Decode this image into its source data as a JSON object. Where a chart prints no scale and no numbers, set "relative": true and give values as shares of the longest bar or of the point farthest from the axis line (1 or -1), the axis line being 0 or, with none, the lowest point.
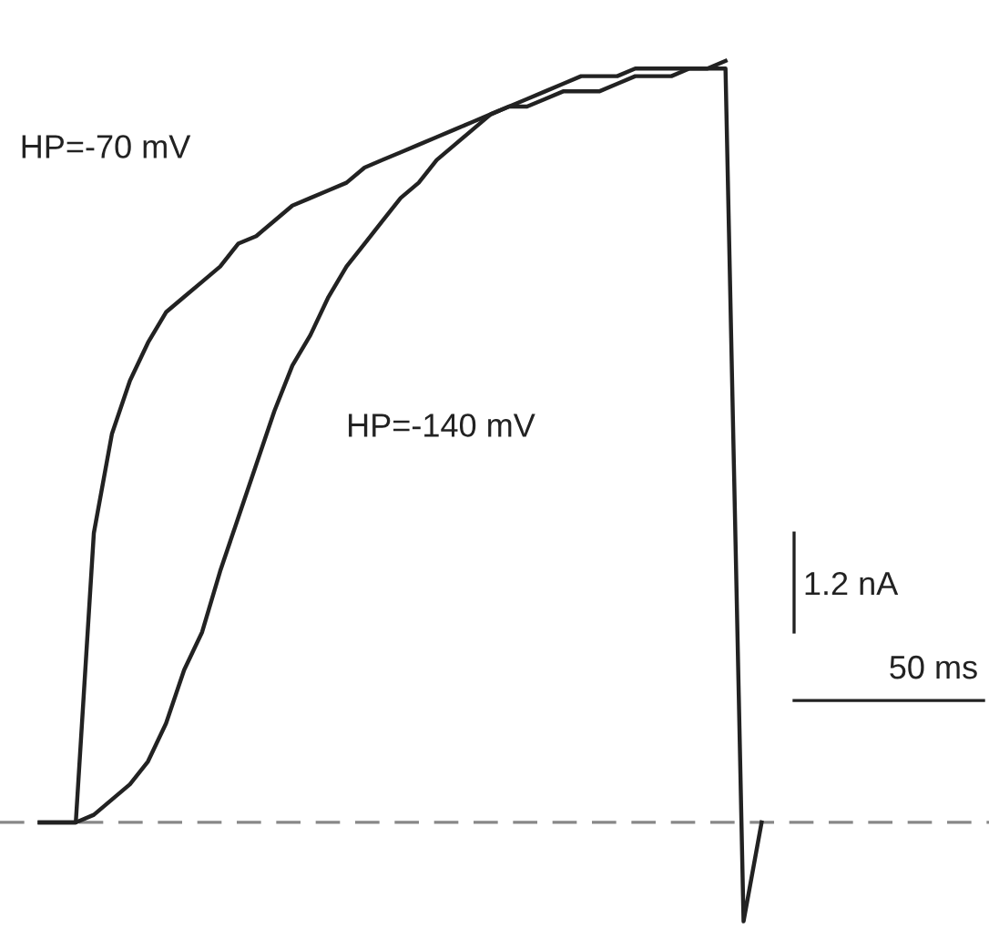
{
  "chart_data": {
    "type": "line",
    "relative": true,
    "legend": false,
    "marker": "none",
    "line_style": "solid",
    "categories": [
      null,
      null,
      null,
      null,
      null,
      null,
      null,
      null,
      null,
      null,
      null,
      null,
      null,
      null,
      null,
      null,
      null,
      null,
      null,
      null,
      null,
      null,
      null,
      null,
      null,
      null,
      null,
      null,
      null,
      null,
      null,
      null,
      null,
      null,
      null,
      null,
      null,
      null,
      null,
      null,
      null
    ],
    "series": [
      {
        "name": "HP=-70 mV",
        "color": "#222222",
        "values": [
          0,
          0,
          0,
          0.38,
          0.51,
          0.58,
          0.63,
          0.67,
          0.69,
          0.71,
          0.73,
          0.76,
          0.77,
          0.79,
          0.81,
          0.82,
          0.83,
          0.84,
          0.86,
          0.87,
          0.88,
          0.89,
          0.9,
          0.91,
          0.92,
          0.93,
          0.94,
          0.94,
          0.95,
          0.96,
          0.96,
          0.96,
          0.97,
          0.98,
          0.98,
          0.98,
          0.99,
          0.99,
          0.99,
          -0.13,
          0
        ]
      },
      {
        "name": "HP=-140 mV",
        "color": "#222222",
        "values": [
          0,
          0,
          0,
          0.01,
          0.03,
          0.05,
          0.08,
          0.13,
          0.2,
          0.25,
          0.33,
          0.4,
          0.47,
          0.54,
          0.6,
          0.64,
          0.69,
          0.73,
          0.76,
          0.79,
          0.82,
          0.84,
          0.87,
          0.89,
          0.91,
          0.93,
          0.94,
          0.95,
          0.96,
          0.97,
          0.98,
          0.98,
          0.98,
          0.99,
          0.99,
          0.99,
          0.99,
          0.99,
          1,
          null,
          null
        ]
      }
    ],
    "ref_lines": [
      {
        "axis": "y",
        "value": 0,
        "color": "#888888",
        "line_style": "dashed"
      }
    ],
    "annotations": [
      "1.2 nA",
      "50 ms"
    ]
  }
}
